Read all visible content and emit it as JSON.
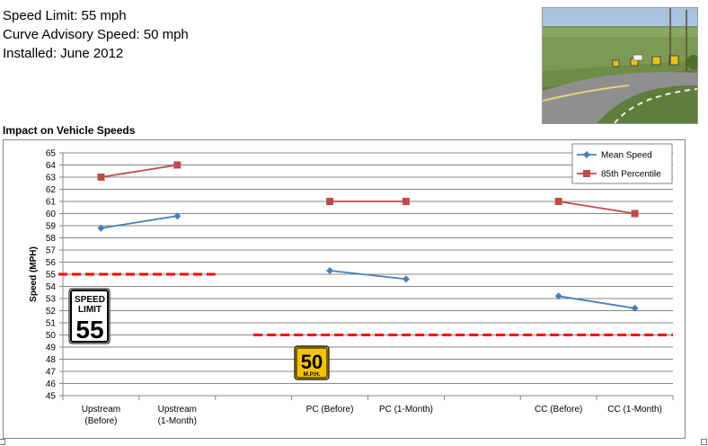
{
  "info": {
    "speed_limit": "Speed Limit: 55 mph",
    "advisory": "Curve Advisory Speed: 50 mph",
    "installed": "Installed: June 2012"
  },
  "chart_data": {
    "type": "line",
    "title": "Impact on Vehicle Speeds",
    "xlabel": "",
    "ylabel": "Speed (MPH)",
    "ylim": [
      45,
      65
    ],
    "ytick_step": 1,
    "grid": true,
    "legend_position": "top-right",
    "categories": [
      "Upstream (Before)",
      "Upstream (1-Month)",
      "",
      "PC (Before)",
      "PC (1-Month)",
      "",
      "CC (Before)",
      "CC (1-Month)"
    ],
    "segments": [
      [
        0,
        1
      ],
      [
        3,
        4
      ],
      [
        6,
        7
      ]
    ],
    "series": [
      {
        "name": "Mean Speed",
        "color": "#4A7EBB",
        "marker": "diamond",
        "values": [
          58.8,
          59.8,
          null,
          55.3,
          54.6,
          null,
          53.2,
          52.2
        ]
      },
      {
        "name": "85th Percentile",
        "color": "#BE4B48",
        "marker": "square",
        "values": [
          63.0,
          64.0,
          null,
          61.0,
          61.0,
          null,
          61.0,
          60.0
        ]
      }
    ],
    "reference_lines": [
      {
        "value": 55,
        "from_category": -0.5,
        "to_category": 1.5,
        "color": "#FF0000"
      },
      {
        "value": 50,
        "from_category": 2.5,
        "to_category": 7.5,
        "color": "#FF0000"
      }
    ],
    "signs": {
      "speed_limit": {
        "line1": "SPEED",
        "line2": "LIMIT",
        "number": "55"
      },
      "advisory": {
        "number": "50",
        "unit": "M.P.H."
      }
    }
  }
}
